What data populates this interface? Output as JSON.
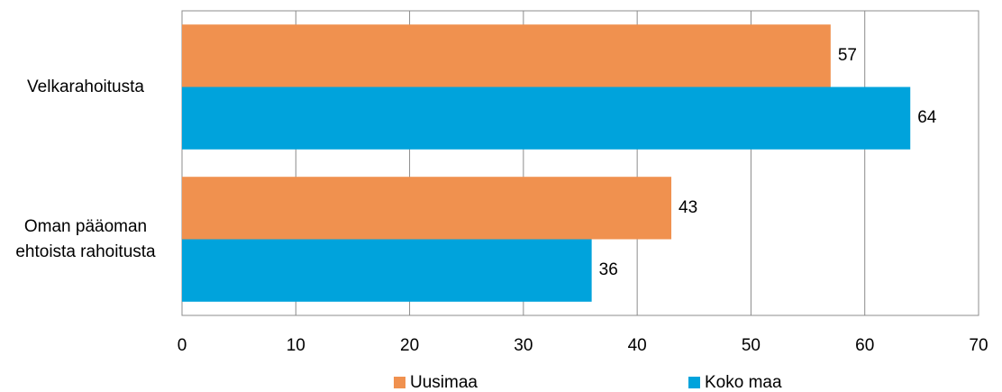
{
  "chart_data": {
    "type": "barh",
    "categories": [
      "Velkarahoitusta",
      "Oman pääoman ehtoista rahoitusta"
    ],
    "series": [
      {
        "name": "Uusimaa",
        "color": "#f0914f",
        "values": [
          57,
          43
        ]
      },
      {
        "name": "Koko maa",
        "color": "#00a3dc",
        "values": [
          64,
          36
        ]
      }
    ],
    "xlim": [
      0,
      70
    ],
    "xticks": [
      0,
      10,
      20,
      30,
      40,
      50,
      60,
      70
    ],
    "grid": true,
    "legend": "bottom"
  }
}
